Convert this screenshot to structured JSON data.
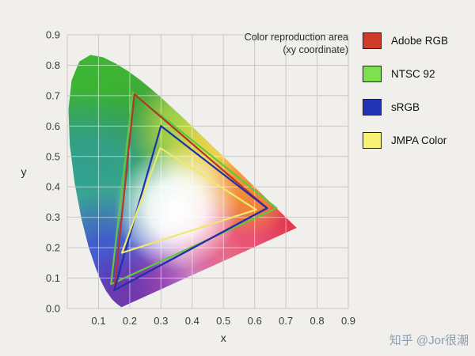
{
  "title": {
    "line1": "Color reproduction area",
    "line2": "(xy coordinate)"
  },
  "legend": [
    {
      "label": "Adobe RGB",
      "color": "#cf3b2a"
    },
    {
      "label": "NTSC 92",
      "color": "#7ce04f"
    },
    {
      "label": "sRGB",
      "color": "#2333b5"
    },
    {
      "label": "JMPA Color",
      "color": "#f7f174"
    }
  ],
  "watermark": "知乎 @Jor很潮",
  "chart_data": {
    "type": "area",
    "subtype": "cie-1931-chromaticity-gamut-comparison",
    "title": "Color reproduction area (xy coordinate)",
    "xlabel": "x",
    "ylabel": "y",
    "xlim": [
      0,
      0.9
    ],
    "ylim": [
      0,
      0.9
    ],
    "grid": true,
    "legend_position": "right",
    "x_tick_labels": [
      "0.1",
      "0.2",
      "0.3",
      "0.4",
      "0.5",
      "0.6",
      "0.7",
      "0.8",
      "0.9"
    ],
    "y_tick_labels": [
      "0.0",
      "0.1",
      "0.2",
      "0.3",
      "0.4",
      "0.5",
      "0.6",
      "0.7",
      "0.8",
      "0.9"
    ],
    "spectral_locus": [
      [
        0.1741,
        0.005
      ],
      [
        0.1726,
        0.0048
      ],
      [
        0.1689,
        0.0086
      ],
      [
        0.1644,
        0.0109
      ],
      [
        0.1566,
        0.0177
      ],
      [
        0.144,
        0.0297
      ],
      [
        0.1241,
        0.0578
      ],
      [
        0.1096,
        0.0868
      ],
      [
        0.0913,
        0.1327
      ],
      [
        0.0687,
        0.2007
      ],
      [
        0.0454,
        0.295
      ],
      [
        0.0235,
        0.4127
      ],
      [
        0.0082,
        0.5384
      ],
      [
        0.0039,
        0.6548
      ],
      [
        0.0139,
        0.7502
      ],
      [
        0.0389,
        0.812
      ],
      [
        0.0743,
        0.8338
      ],
      [
        0.1142,
        0.8262
      ],
      [
        0.1547,
        0.8059
      ],
      [
        0.1929,
        0.7816
      ],
      [
        0.2296,
        0.7543
      ],
      [
        0.2658,
        0.7243
      ],
      [
        0.3016,
        0.6923
      ],
      [
        0.3373,
        0.6589
      ],
      [
        0.3731,
        0.6245
      ],
      [
        0.4087,
        0.5896
      ],
      [
        0.4441,
        0.5547
      ],
      [
        0.4788,
        0.5202
      ],
      [
        0.5125,
        0.4866
      ],
      [
        0.5448,
        0.4544
      ],
      [
        0.5752,
        0.4242
      ],
      [
        0.6029,
        0.3965
      ],
      [
        0.627,
        0.3725
      ],
      [
        0.6482,
        0.3514
      ],
      [
        0.6658,
        0.334
      ],
      [
        0.6801,
        0.3197
      ],
      [
        0.6915,
        0.3083
      ],
      [
        0.7079,
        0.292
      ],
      [
        0.719,
        0.2809
      ],
      [
        0.726,
        0.274
      ],
      [
        0.73,
        0.27
      ],
      [
        0.7347,
        0.2653
      ]
    ],
    "series": [
      {
        "name": "NTSC 92",
        "color": "#5ec93e",
        "points": [
          [
            0.67,
            0.33
          ],
          [
            0.21,
            0.71
          ],
          [
            0.14,
            0.08
          ]
        ]
      },
      {
        "name": "Adobe RGB",
        "color": "#b5352b",
        "points": [
          [
            0.64,
            0.33
          ],
          [
            0.215,
            0.705
          ],
          [
            0.15,
            0.06
          ]
        ]
      },
      {
        "name": "sRGB",
        "color": "#1f2fae",
        "points": [
          [
            0.64,
            0.33
          ],
          [
            0.3,
            0.6
          ],
          [
            0.15,
            0.06
          ]
        ]
      },
      {
        "name": "JMPA Color",
        "color": "#efe86a",
        "points": [
          [
            0.605,
            0.325
          ],
          [
            0.298,
            0.528
          ],
          [
            0.175,
            0.183
          ]
        ]
      }
    ]
  }
}
